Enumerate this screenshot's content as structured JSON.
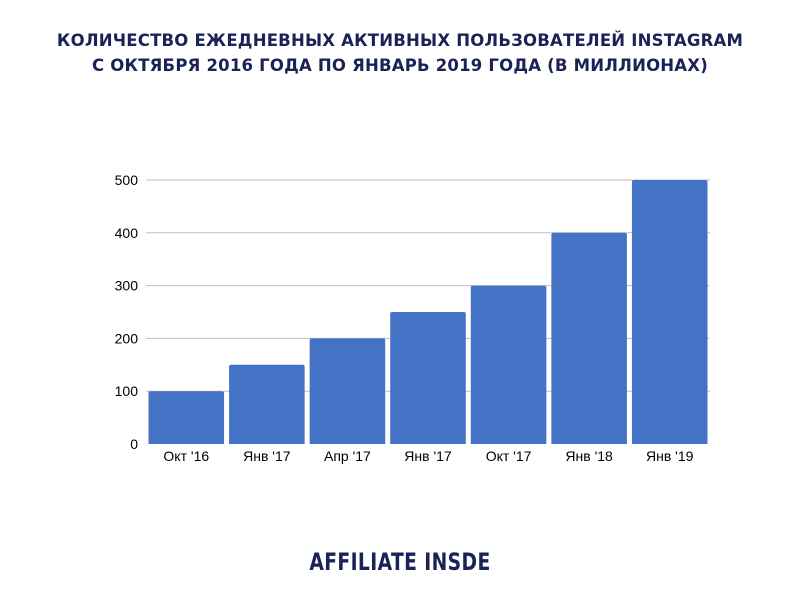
{
  "title_lines": [
    "КОЛИЧЕСТВО ЕЖЕДНЕВНЫХ АКТИВНЫХ ПОЛЬЗОВАТЕЛЕЙ INSTAGRAM",
    "С ОКТЯБРЯ 2016 ГОДА ПО ЯНВАРЬ 2019 ГОДА (В МИЛЛИОНАХ)"
  ],
  "logo_text": "AFFILIATE INSDE",
  "colors": {
    "bar": "#4472c4",
    "title": "#1b2257",
    "grid": "#bfbfbf",
    "axis_text": "#000000"
  },
  "chart_data": {
    "type": "bar",
    "title": "КОЛИЧЕСТВО ЕЖЕДНЕВНЫХ АКТИВНЫХ ПОЛЬЗОВАТЕЛЕЙ INSTAGRAM С ОКТЯБРЯ 2016 ГОДА ПО ЯНВАРЬ 2019 ГОДА (В МИЛЛИОНАХ)",
    "categories": [
      "Окт '16",
      "Янв '17",
      "Апр '17",
      "Янв '17",
      "Окт '17",
      "Янв '18",
      "Янв '19"
    ],
    "values": [
      100,
      150,
      200,
      250,
      300,
      400,
      500
    ],
    "yticks": [
      0,
      100,
      200,
      300,
      400,
      500
    ],
    "ylim": [
      0,
      500
    ],
    "xlabel": "",
    "ylabel": "",
    "grid": true,
    "legend": "none"
  }
}
